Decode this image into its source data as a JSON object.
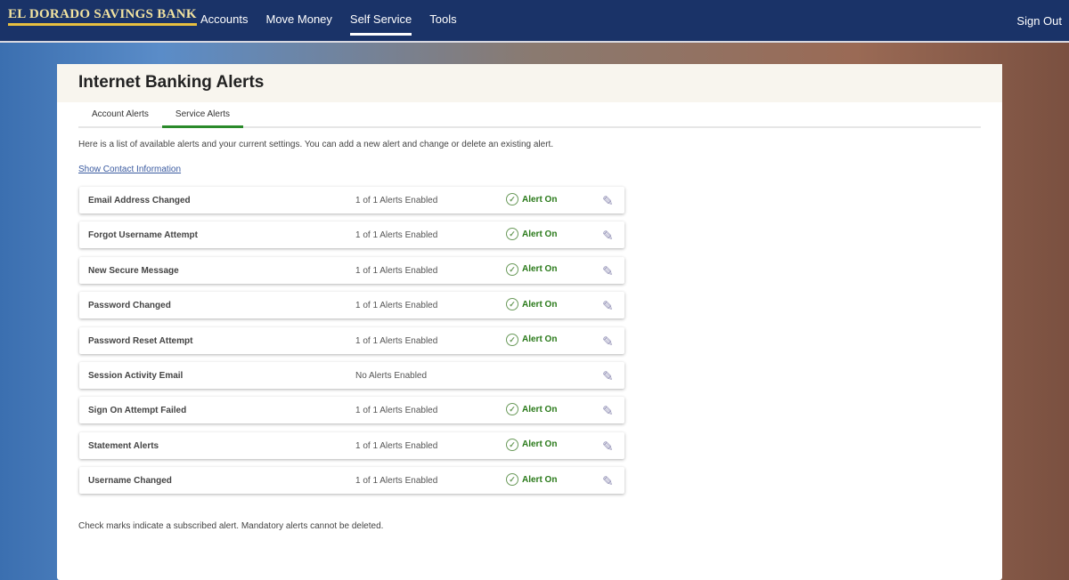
{
  "header": {
    "logo": "EL DORADO SAVINGS BANK",
    "nav": [
      "Accounts",
      "Move Money",
      "Self Service",
      "Tools"
    ],
    "active_nav": "Self Service",
    "sign_out": "Sign Out"
  },
  "page": {
    "title": "Internet Banking Alerts",
    "tabs": [
      "Account Alerts",
      "Service Alerts"
    ],
    "active_tab": "Service Alerts",
    "description": "Here is a list of available alerts and your current settings. You can add a new alert and change or delete an existing alert.",
    "contact_link": "Show Contact Information",
    "footer": "Check marks indicate a subscribed alert. Mandatory alerts cannot be deleted.",
    "alerts": [
      {
        "name": "Email Address Changed",
        "count": "1 of 1 Alerts Enabled",
        "status": "Alert On"
      },
      {
        "name": "Forgot Username Attempt",
        "count": "1 of 1 Alerts Enabled",
        "status": "Alert On"
      },
      {
        "name": "New Secure Message",
        "count": "1 of 1 Alerts Enabled",
        "status": "Alert On"
      },
      {
        "name": "Password Changed",
        "count": "1 of 1 Alerts Enabled",
        "status": "Alert On"
      },
      {
        "name": "Password Reset Attempt",
        "count": "1 of 1 Alerts Enabled",
        "status": "Alert On"
      },
      {
        "name": "Session Activity Email",
        "count": "No Alerts Enabled",
        "status": ""
      },
      {
        "name": "Sign On Attempt Failed",
        "count": "1 of 1 Alerts Enabled",
        "status": "Alert On"
      },
      {
        "name": "Statement Alerts",
        "count": "1 of 1 Alerts Enabled",
        "status": "Alert On"
      },
      {
        "name": "Username Changed",
        "count": "1 of 1 Alerts Enabled",
        "status": "Alert On"
      }
    ]
  },
  "colors": {
    "header": "#1a3368",
    "accent": "#2a8a2a"
  }
}
